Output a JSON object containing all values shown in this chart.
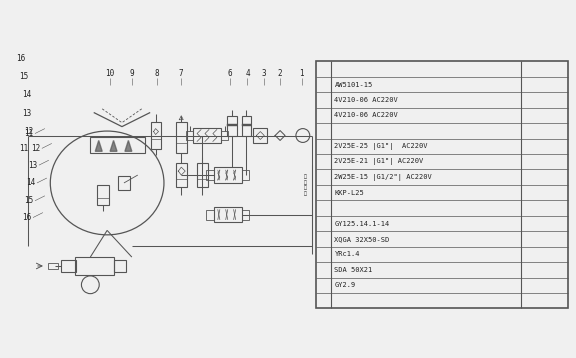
{
  "bg": "#f0f0f0",
  "lc": "#555555",
  "table_rows": [
    "",
    "AW5101-15",
    "4V210-06 AC220V",
    "4V210-06 AC220V",
    "",
    "2V25E-25 |G1\"|  AC220V",
    "2V25E-21 |G1\"| AC220V",
    "2W25E-15 |G1/2\"| AC220V",
    "KKP-L25",
    "",
    "GY125.14.1-14",
    "XQGA 32X50-SD",
    "YRc1.4",
    "SDA 50X21",
    "GY2.9",
    ""
  ],
  "top_labels": [
    [
      302,
      "1"
    ],
    [
      280,
      "2"
    ],
    [
      264,
      "3"
    ],
    [
      247,
      "4"
    ],
    [
      229,
      "6"
    ],
    [
      180,
      "7"
    ],
    [
      155,
      "8"
    ],
    [
      130,
      "9"
    ],
    [
      108,
      "10"
    ]
  ],
  "left_labels": [
    [
      25,
      105,
      "11"
    ],
    [
      30,
      122,
      "12"
    ],
    [
      28,
      140,
      "13"
    ],
    [
      28,
      160,
      "14"
    ],
    [
      25,
      178,
      "15"
    ],
    [
      22,
      196,
      "16"
    ]
  ]
}
